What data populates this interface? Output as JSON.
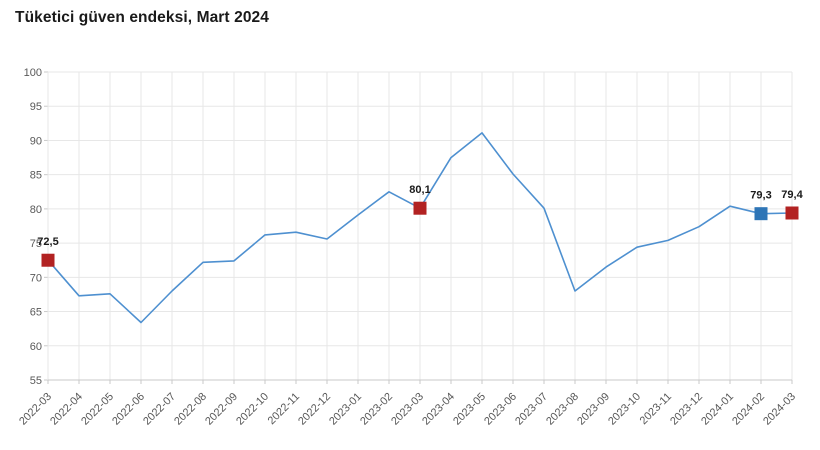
{
  "chart_data": {
    "type": "line",
    "title": "Tüketici güven endeksi, Mart 2024",
    "x": [
      "2022-03",
      "2022-04",
      "2022-05",
      "2022-06",
      "2022-07",
      "2022-08",
      "2022-09",
      "2022-10",
      "2022-11",
      "2022-12",
      "2023-01",
      "2023-02",
      "2023-03",
      "2023-04",
      "2023-05",
      "2023-06",
      "2023-07",
      "2023-08",
      "2023-09",
      "2023-10",
      "2023-11",
      "2023-12",
      "2024-01",
      "2024-02",
      "2024-03"
    ],
    "values": [
      72.5,
      67.3,
      67.6,
      63.4,
      68.0,
      72.2,
      72.4,
      76.2,
      76.6,
      75.6,
      79.1,
      82.5,
      80.1,
      87.5,
      91.1,
      85.1,
      80.1,
      68.0,
      71.5,
      74.4,
      75.4,
      77.4,
      80.4,
      79.3,
      79.4
    ],
    "ylim": [
      55,
      100
    ],
    "ytick_step": 5,
    "grid": true,
    "legend": "none",
    "xlabel": "",
    "ylabel": "",
    "highlighted_points": [
      {
        "x": "2022-03",
        "value": 72.5,
        "label": "72,5",
        "color": "#b22222"
      },
      {
        "x": "2023-03",
        "value": 80.1,
        "label": "80,1",
        "color": "#b22222"
      },
      {
        "x": "2024-02",
        "value": 79.3,
        "label": "79,3",
        "color": "#2e75b6"
      },
      {
        "x": "2024-03",
        "value": 79.4,
        "label": "79,4",
        "color": "#b22222"
      }
    ],
    "colors": {
      "line": "#4e90d0",
      "grid": "#e7e7e7",
      "axis": "#c9c9c9",
      "tick_label": "#595959",
      "text": "#1a1a1a",
      "background": "#ffffff"
    }
  }
}
